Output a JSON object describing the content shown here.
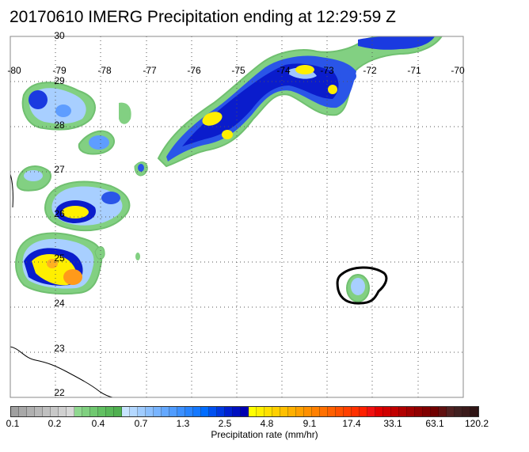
{
  "title": "20170610 IMERG Precipitation ending at 12:29:59 Z",
  "map": {
    "lon_labels": [
      "-80",
      "-79",
      "-78",
      "-77",
      "-76",
      "-75",
      "-74",
      "-73",
      "-72",
      "-71",
      "-70"
    ],
    "lat_labels": [
      "30",
      "29",
      "28",
      "27",
      "26",
      "25",
      "24",
      "23",
      "22"
    ],
    "lon_range": [
      -80,
      -70
    ],
    "lat_range": [
      22,
      30
    ],
    "grid": "dotted"
  },
  "colorbar": {
    "tick_labels": [
      "0.1",
      "0.2",
      "0.4",
      "0.7",
      "1.3",
      "2.5",
      "4.8",
      "9.1",
      "17.4",
      "33.1",
      "63.1",
      "120.2"
    ],
    "title": "Precipitation rate (mm/hr)",
    "colors": [
      "#a0a0a0",
      "#a8a8a8",
      "#b0b0b0",
      "#b8b8b8",
      "#c0c0c0",
      "#c8c8c8",
      "#d0d0d0",
      "#d8d8d8",
      "#8fd88f",
      "#80d080",
      "#70c870",
      "#62c062",
      "#58b858",
      "#50b050",
      "#c8e4ff",
      "#b4d8ff",
      "#a0ccff",
      "#8cc0ff",
      "#78b4ff",
      "#64a8ff",
      "#509cff",
      "#3c90ff",
      "#2884ff",
      "#1478ff",
      "#006cff",
      "#0050f0",
      "#0038e0",
      "#0020d0",
      "#0010c0",
      "#0000b0",
      "#ffff00",
      "#fff000",
      "#ffe000",
      "#ffd000",
      "#ffc000",
      "#ffb000",
      "#ffa000",
      "#ff9000",
      "#ff8000",
      "#ff7000",
      "#ff6000",
      "#ff5000",
      "#ff4000",
      "#ff3000",
      "#ff2000",
      "#f01010",
      "#e00000",
      "#d00000",
      "#c00000",
      "#b00000",
      "#a00000",
      "#900000",
      "#800000",
      "#700000",
      "#601010",
      "#502020",
      "#402020",
      "#3a1a1a",
      "#301515"
    ]
  }
}
